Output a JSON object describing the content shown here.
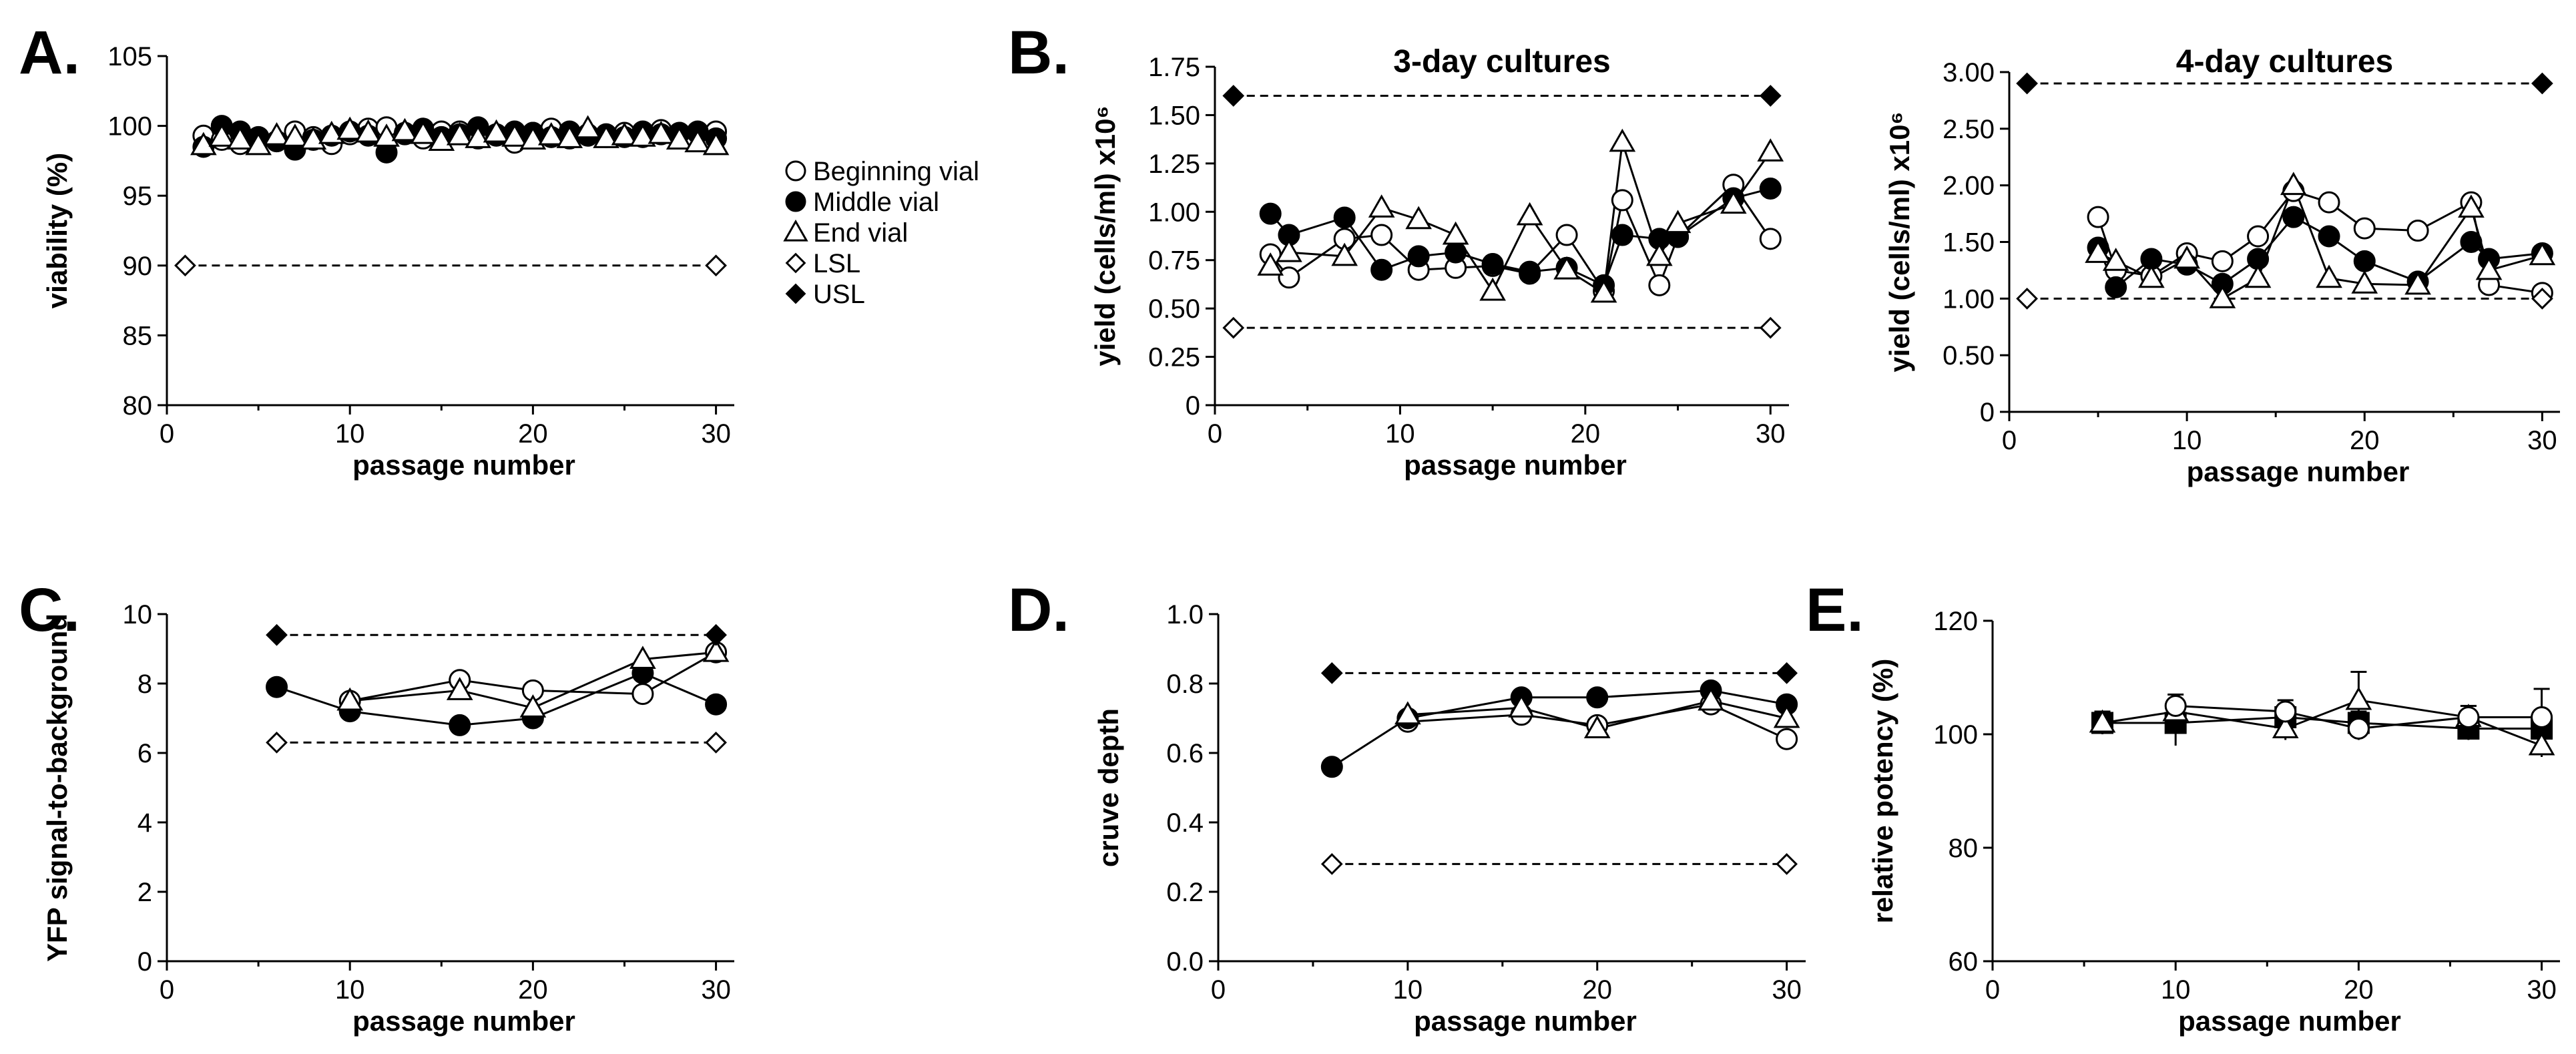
{
  "figure": {
    "legend": [
      {
        "label": "Beginning vial",
        "marker": "circle-open"
      },
      {
        "label": "Middle vial",
        "marker": "circle-filled"
      },
      {
        "label": "End vial",
        "marker": "triangle-open"
      },
      {
        "label": "LSL",
        "marker": "diamond-open"
      },
      {
        "label": "USL",
        "marker": "diamond-filled"
      }
    ]
  },
  "chart_data": [
    {
      "id": "A",
      "letter": "A.",
      "type": "line",
      "title": "",
      "xlabel": "passage number",
      "ylabel": "viability (%)",
      "xlim": [
        0,
        31
      ],
      "ylim": [
        80,
        105
      ],
      "xticks": [
        0,
        10,
        20,
        30
      ],
      "yticks": [
        80,
        85,
        90,
        95,
        100,
        105
      ],
      "connect_lines": false,
      "series": [
        {
          "name": "Beginning vial",
          "marker": "circle-open",
          "x": [
            2,
            3,
            4,
            5,
            6,
            7,
            8,
            9,
            10,
            11,
            12,
            13,
            14,
            15,
            16,
            17,
            18,
            19,
            20,
            21,
            22,
            23,
            24,
            25,
            26,
            27,
            28,
            29,
            30
          ],
          "y": [
            99.3,
            99.0,
            98.7,
            99.0,
            98.9,
            99.6,
            99.2,
            98.7,
            99.4,
            99.8,
            99.9,
            99.5,
            99.1,
            99.6,
            99.6,
            99.1,
            99.4,
            98.8,
            99.5,
            99.8,
            99.1,
            99.4,
            99.2,
            99.5,
            99.2,
            99.7,
            99.5,
            99.5,
            99.6
          ]
        },
        {
          "name": "Middle vial",
          "marker": "circle-filled",
          "x": [
            2,
            3,
            4,
            5,
            6,
            7,
            8,
            9,
            10,
            11,
            12,
            13,
            14,
            15,
            16,
            17,
            18,
            19,
            20,
            21,
            22,
            23,
            24,
            25,
            26,
            27,
            28,
            29,
            30
          ],
          "y": [
            98.5,
            100.0,
            99.6,
            99.2,
            98.9,
            98.3,
            99.0,
            99.3,
            99.6,
            99.3,
            98.1,
            99.4,
            99.8,
            99.2,
            99.4,
            99.9,
            99.3,
            99.6,
            99.5,
            99.2,
            99.6,
            99.3,
            99.4,
            99.2,
            99.6,
            99.4,
            99.5,
            99.6,
            99.1
          ]
        },
        {
          "name": "End vial",
          "marker": "triangle-open",
          "x": [
            2,
            3,
            4,
            5,
            6,
            7,
            8,
            9,
            10,
            11,
            12,
            13,
            14,
            15,
            16,
            17,
            18,
            19,
            20,
            21,
            22,
            23,
            24,
            25,
            26,
            27,
            28,
            29,
            30
          ],
          "y": [
            98.6,
            99.2,
            99.0,
            98.6,
            99.3,
            99.2,
            99.0,
            99.4,
            99.7,
            99.5,
            99.2,
            99.6,
            99.4,
            98.9,
            99.3,
            99.1,
            99.5,
            99.2,
            99.0,
            99.3,
            99.1,
            99.8,
            99.1,
            99.3,
            99.2,
            99.4,
            99.0,
            98.8,
            98.6
          ]
        },
        {
          "name": "LSL",
          "marker": "diamond-open",
          "dashed": true,
          "x": [
            1,
            30
          ],
          "y": [
            90,
            90
          ]
        }
      ]
    },
    {
      "id": "B1",
      "letter": "B.",
      "type": "line",
      "title": "3-day cultures",
      "xlabel": "passage number",
      "ylabel": "yield (cells/ml) x10⁶",
      "xlim": [
        0,
        31
      ],
      "ylim": [
        0,
        1.75
      ],
      "xticks": [
        0,
        10,
        20,
        30
      ],
      "yticks": [
        0,
        0.25,
        0.5,
        0.75,
        1.0,
        1.25,
        1.5,
        1.75
      ],
      "yformat": 2,
      "connect_lines": true,
      "series": [
        {
          "name": "Beginning vial",
          "marker": "circle-open",
          "x": [
            3,
            4,
            7,
            9,
            11,
            13,
            15,
            17,
            19,
            21,
            22,
            24,
            25,
            28,
            30
          ],
          "y": [
            0.78,
            0.66,
            0.86,
            0.88,
            0.7,
            0.71,
            0.72,
            0.68,
            0.88,
            0.59,
            1.06,
            0.62,
            0.87,
            1.14,
            0.86
          ]
        },
        {
          "name": "Middle vial",
          "marker": "circle-filled",
          "x": [
            3,
            4,
            7,
            9,
            11,
            13,
            15,
            17,
            19,
            21,
            22,
            24,
            25,
            28,
            30
          ],
          "y": [
            0.99,
            0.88,
            0.97,
            0.7,
            0.77,
            0.79,
            0.73,
            0.69,
            0.71,
            0.62,
            0.88,
            0.86,
            0.87,
            1.07,
            1.12
          ]
        },
        {
          "name": "End vial",
          "marker": "triangle-open",
          "x": [
            3,
            4,
            7,
            9,
            11,
            13,
            15,
            17,
            19,
            21,
            22,
            24,
            25,
            28,
            30
          ],
          "y": [
            0.72,
            0.79,
            0.77,
            1.02,
            0.96,
            0.88,
            0.59,
            0.98,
            0.7,
            0.58,
            1.36,
            0.77,
            0.94,
            1.04,
            1.31
          ]
        },
        {
          "name": "LSL",
          "marker": "diamond-open",
          "dashed": true,
          "x": [
            1,
            30
          ],
          "y": [
            0.4,
            0.4
          ]
        },
        {
          "name": "USL",
          "marker": "diamond-filled",
          "dashed": true,
          "x": [
            1,
            30
          ],
          "y": [
            1.6,
            1.6
          ]
        }
      ]
    },
    {
      "id": "B2",
      "letter": "",
      "type": "line",
      "title": "4-day cultures",
      "xlabel": "passage number",
      "ylabel": "yield (cells/ml) x10⁶",
      "xlim": [
        0,
        31
      ],
      "ylim": [
        0,
        3.0
      ],
      "xticks": [
        0,
        10,
        20,
        30
      ],
      "yticks": [
        0,
        0.5,
        1.0,
        1.5,
        2.0,
        2.5,
        3.0
      ],
      "yformat": 2,
      "connect_lines": true,
      "series": [
        {
          "name": "Beginning vial",
          "marker": "circle-open",
          "x": [
            5,
            6,
            8,
            10,
            12,
            14,
            16,
            18,
            20,
            23,
            26,
            27,
            30
          ],
          "y": [
            1.72,
            1.25,
            1.2,
            1.4,
            1.33,
            1.55,
            1.95,
            1.85,
            1.62,
            1.6,
            1.85,
            1.12,
            1.05
          ]
        },
        {
          "name": "Middle vial",
          "marker": "circle-filled",
          "x": [
            5,
            6,
            8,
            10,
            12,
            14,
            16,
            18,
            20,
            23,
            26,
            27,
            30
          ],
          "y": [
            1.45,
            1.1,
            1.35,
            1.3,
            1.13,
            1.35,
            1.72,
            1.55,
            1.33,
            1.15,
            1.5,
            1.35,
            1.4
          ]
        },
        {
          "name": "End vial",
          "marker": "triangle-open",
          "x": [
            5,
            6,
            8,
            10,
            12,
            14,
            16,
            18,
            20,
            23,
            26,
            27,
            30
          ],
          "y": [
            1.4,
            1.33,
            1.18,
            1.35,
            1.0,
            1.18,
            2.0,
            1.18,
            1.13,
            1.12,
            1.8,
            1.25,
            1.38
          ]
        },
        {
          "name": "LSL",
          "marker": "diamond-open",
          "dashed": true,
          "x": [
            1,
            30
          ],
          "y": [
            1.0,
            1.0
          ]
        },
        {
          "name": "USL",
          "marker": "diamond-filled",
          "dashed": true,
          "x": [
            1,
            30
          ],
          "y": [
            2.9,
            2.9
          ]
        }
      ]
    },
    {
      "id": "C",
      "letter": "C.",
      "type": "line",
      "title": "",
      "xlabel": "passage number",
      "ylabel": "YFP signal-to-background",
      "xlim": [
        0,
        31
      ],
      "ylim": [
        0,
        10
      ],
      "xticks": [
        0,
        10,
        20,
        30
      ],
      "yticks": [
        0,
        2,
        4,
        6,
        8,
        10
      ],
      "connect_lines": true,
      "series": [
        {
          "name": "Beginning vial",
          "marker": "circle-open",
          "x": [
            10,
            16,
            20,
            26,
            30
          ],
          "y": [
            7.5,
            8.1,
            7.8,
            7.7,
            8.9
          ]
        },
        {
          "name": "Middle vial",
          "marker": "circle-filled",
          "x": [
            6,
            10,
            16,
            20,
            26,
            30
          ],
          "y": [
            7.9,
            7.2,
            6.8,
            7.0,
            8.3,
            7.4
          ]
        },
        {
          "name": "End vial",
          "marker": "triangle-open",
          "x": [
            10,
            16,
            20,
            26,
            30
          ],
          "y": [
            7.5,
            7.8,
            7.3,
            8.7,
            8.9
          ]
        },
        {
          "name": "LSL",
          "marker": "diamond-open",
          "dashed": true,
          "x": [
            6,
            30
          ],
          "y": [
            6.3,
            6.3
          ]
        },
        {
          "name": "USL",
          "marker": "diamond-filled",
          "dashed": true,
          "x": [
            6,
            30
          ],
          "y": [
            9.4,
            9.4
          ]
        }
      ]
    },
    {
      "id": "D",
      "letter": "D.",
      "type": "line",
      "title": "",
      "xlabel": "passage number",
      "ylabel": "cruve depth",
      "xlim": [
        0,
        31
      ],
      "ylim": [
        0,
        1.0
      ],
      "xticks": [
        0,
        10,
        20,
        30
      ],
      "yticks": [
        0,
        0.2,
        0.4,
        0.6,
        0.8,
        1.0
      ],
      "yformat": 1,
      "connect_lines": true,
      "series": [
        {
          "name": "Beginning vial",
          "marker": "circle-open",
          "x": [
            10,
            16,
            20,
            26,
            30
          ],
          "y": [
            0.69,
            0.71,
            0.68,
            0.74,
            0.64
          ]
        },
        {
          "name": "Middle vial",
          "marker": "circle-filled",
          "x": [
            6,
            10,
            16,
            20,
            26,
            30
          ],
          "y": [
            0.56,
            0.7,
            0.76,
            0.76,
            0.78,
            0.74
          ]
        },
        {
          "name": "End vial",
          "marker": "triangle-open",
          "x": [
            10,
            16,
            20,
            26,
            30
          ],
          "y": [
            0.71,
            0.73,
            0.67,
            0.75,
            0.7
          ]
        },
        {
          "name": "LSL",
          "marker": "diamond-open",
          "dashed": true,
          "x": [
            6,
            30
          ],
          "y": [
            0.28,
            0.28
          ]
        },
        {
          "name": "USL",
          "marker": "diamond-filled",
          "dashed": true,
          "x": [
            6,
            30
          ],
          "y": [
            0.83,
            0.83
          ]
        }
      ]
    },
    {
      "id": "E",
      "letter": "E.",
      "type": "line",
      "title": "",
      "xlabel": "passage number",
      "ylabel": "relative potency (%)",
      "xlim": [
        0,
        31
      ],
      "ylim": [
        60,
        120
      ],
      "xticks": [
        0,
        10,
        20,
        30
      ],
      "yticks": [
        60,
        80,
        100,
        120
      ],
      "connect_lines": true,
      "series": [
        {
          "name": "Middle vial",
          "marker": "square-filled",
          "x": [
            6,
            10,
            16,
            20,
            26,
            30
          ],
          "y": [
            102,
            102,
            103,
            102,
            101,
            101
          ],
          "err": [
            2,
            4,
            2,
            2,
            2,
            3
          ]
        },
        {
          "name": "End vial",
          "marker": "triangle-open",
          "x": [
            6,
            10,
            16,
            20,
            26,
            30
          ],
          "y": [
            102,
            104,
            101,
            106,
            103,
            98
          ],
          "err": [
            2,
            2,
            2,
            5,
            2,
            2
          ]
        },
        {
          "name": "Beginning vial",
          "marker": "circle-open",
          "x": [
            10,
            16,
            20,
            26,
            30
          ],
          "y": [
            105,
            104,
            101,
            103,
            103
          ],
          "err": [
            2,
            2,
            2,
            2,
            5
          ]
        }
      ]
    }
  ]
}
